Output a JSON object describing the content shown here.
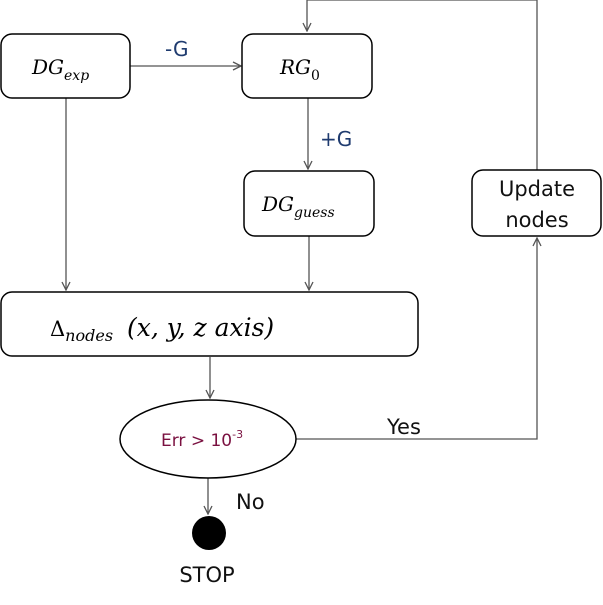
{
  "nodes": {
    "dg_exp": {
      "base": "DG",
      "sub": "exp"
    },
    "rg0": {
      "base": "RG",
      "sub": "0"
    },
    "dg_guess": {
      "base": "DG",
      "sub": "guess"
    },
    "delta": {
      "base": "Δ",
      "sub": "nodes",
      "args": "(x, y, z axis)"
    },
    "update": {
      "line1": "Update",
      "line2": "nodes"
    },
    "decision": {
      "text": "Err > 10",
      "sup": "-3"
    },
    "stop": {
      "label": "STOP"
    }
  },
  "edges": {
    "minus_g": "-G",
    "plus_g": "+G",
    "yes": "Yes",
    "no": "No"
  }
}
